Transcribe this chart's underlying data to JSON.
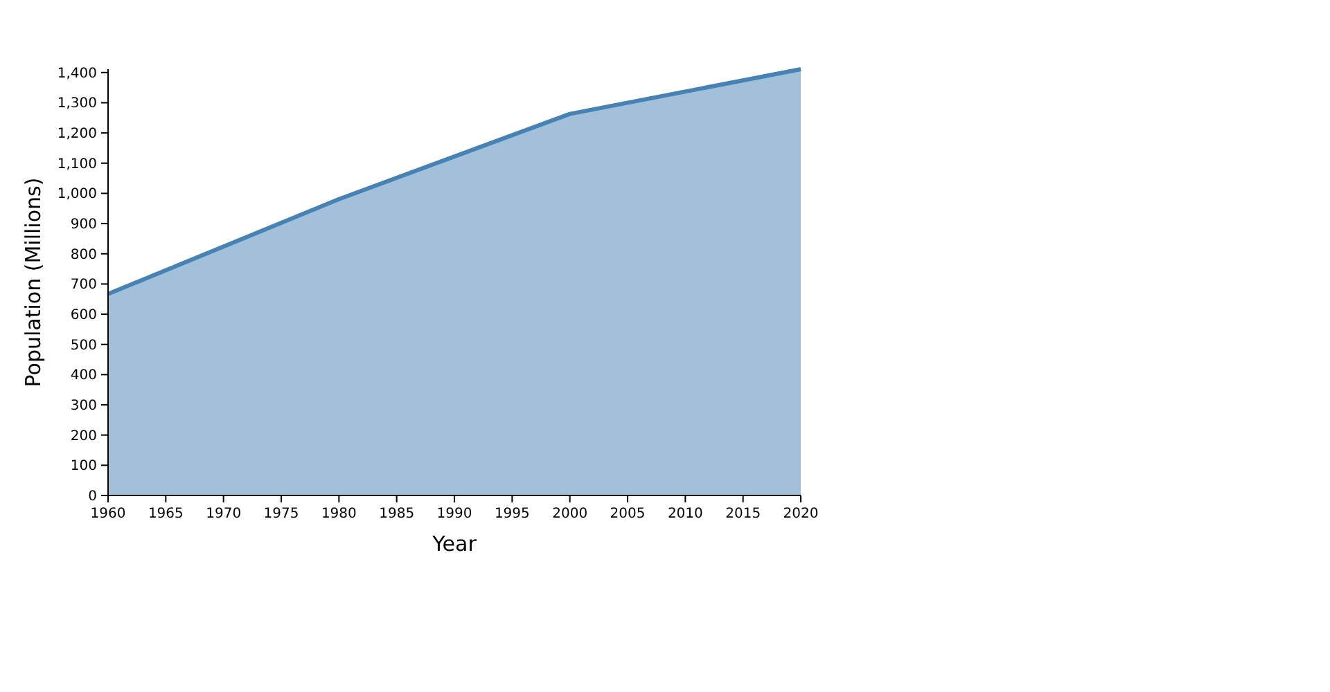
{
  "chart_data": {
    "type": "area",
    "xlabel": "Year",
    "ylabel": "Population (Millions)",
    "x": [
      1960,
      1980,
      2000,
      2020
    ],
    "series": [
      {
        "color": "#4682b4",
        "values": [
          667,
          981,
          1263,
          1411
        ]
      }
    ],
    "xlim": [
      1960,
      2020
    ],
    "xticks": [
      1960,
      1965,
      1970,
      1975,
      1980,
      1985,
      1990,
      1995,
      2000,
      2005,
      2010,
      2015,
      2020
    ],
    "ylim": [
      0,
      1411
    ],
    "yticks": [
      0,
      100,
      200,
      300,
      400,
      500,
      600,
      700,
      800,
      900,
      {
        "value": 1000,
        "label": "1,000"
      },
      {
        "value": 1100,
        "label": "1,100"
      },
      {
        "value": 1200,
        "label": "1,200"
      },
      {
        "value": 1300,
        "label": "1,300"
      },
      {
        "value": 1400,
        "label": "1,400"
      }
    ]
  }
}
